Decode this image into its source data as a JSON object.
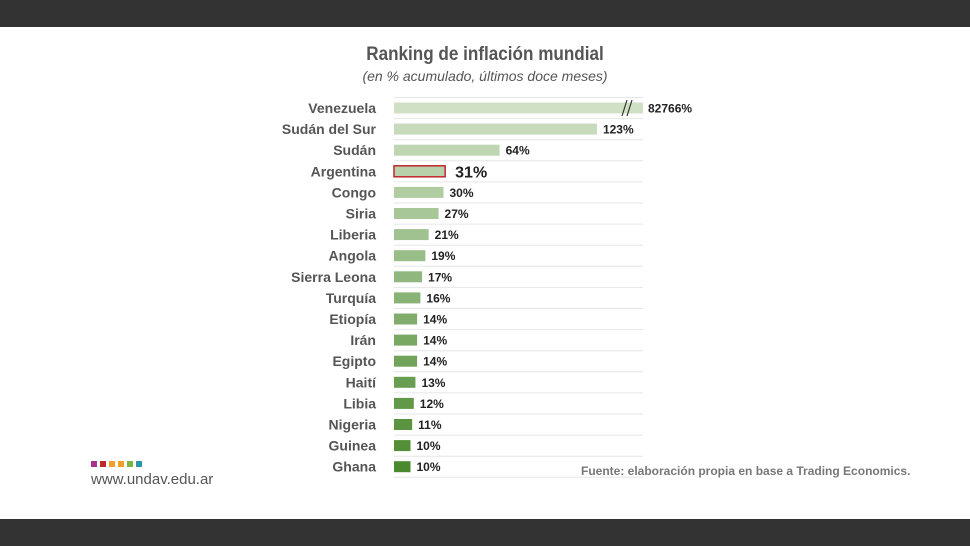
{
  "chart_data": {
    "type": "bar",
    "orientation": "horizontal",
    "title": "Ranking de inflación mundial",
    "subtitle": "(en % acumulado, últimos doce meses)",
    "categories": [
      "Venezuela",
      "Sudán del Sur",
      "Sudán",
      "Argentina",
      "Congo",
      "Siria",
      "Liberia",
      "Angola",
      "Sierra Leona",
      "Turquía",
      "Etiopía",
      "Irán",
      "Egipto",
      "Haití",
      "Libia",
      "Nigeria",
      "Guinea",
      "Ghana"
    ],
    "values": [
      82766,
      123,
      64,
      31,
      30,
      27,
      21,
      19,
      17,
      16,
      14,
      14,
      14,
      13,
      12,
      11,
      10,
      10
    ],
    "labels": [
      "82766%",
      "123%",
      "64%",
      "31%",
      "30%",
      "27%",
      "21%",
      "19%",
      "17%",
      "16%",
      "14%",
      "14%",
      "14%",
      "13%",
      "12%",
      "11%",
      "10%",
      "10%"
    ],
    "highlight": "Argentina",
    "highlight_color": "#c0272d",
    "truncated": "Venezuela",
    "grid": false,
    "legend": "none"
  },
  "footer": {
    "site": "www.undav.edu.ar",
    "source": "Fuente: elaboración propia en base a Trading Economics.",
    "logo_colors": [
      "#a3328a",
      "#c0272d",
      "#f0a02a",
      "#f0a02a",
      "#7cb342",
      "#2a9aa8"
    ]
  }
}
